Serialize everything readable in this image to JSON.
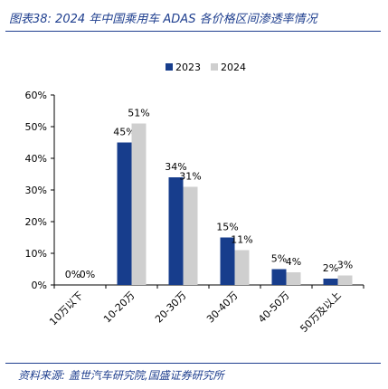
{
  "figure": {
    "title": "图表38:  2024 年中国乘用车 ADAS 各价格区间渗透率情况",
    "source": "资料来源:  盖世汽车研究院,国盛证券研究所"
  },
  "chart_data": {
    "type": "bar",
    "categories": [
      "10万以下",
      "10-20万",
      "20-30万",
      "30-40万",
      "40-50万",
      "50万及以上"
    ],
    "series": [
      {
        "name": "2023",
        "values": [
          0,
          45,
          34,
          15,
          5,
          2
        ],
        "labels": [
          "0%",
          "45%",
          "34%",
          "15%",
          "5%",
          "2%"
        ],
        "color": "#173d8c"
      },
      {
        "name": "2024",
        "values": [
          0,
          51,
          31,
          11,
          4,
          3
        ],
        "labels": [
          "0%",
          "51%",
          "31%",
          "11%",
          "4%",
          "3%"
        ],
        "color": "#cfcfcf"
      }
    ],
    "ylim": [
      0,
      60
    ],
    "yticks": [
      "0%",
      "10%",
      "20%",
      "30%",
      "40%",
      "50%",
      "60%"
    ],
    "ytick_values": [
      0,
      10,
      20,
      30,
      40,
      50,
      60
    ],
    "grid": false,
    "legend_position": "top-right"
  }
}
